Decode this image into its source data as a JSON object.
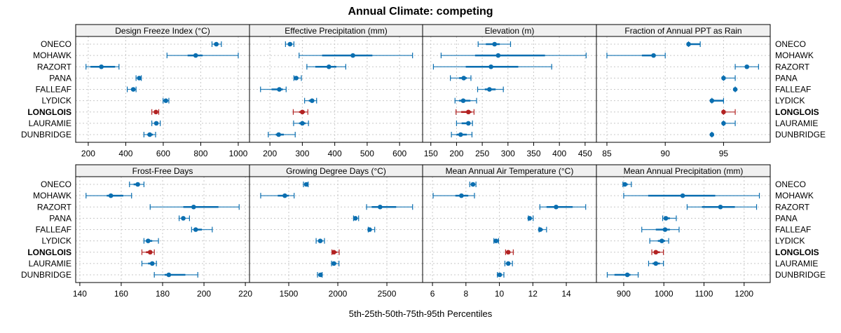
{
  "chart_data": {
    "type": "dotplot-intervals",
    "title": "Annual Climate: competing",
    "xlabel": "5th-25th-50th-75th-95th Percentiles",
    "sites": [
      "ONECO",
      "MOHAWK",
      "RAZORT",
      "PANA",
      "FALLEAF",
      "LYDICK",
      "LONGLOIS",
      "LAURAMIE",
      "DUNBRIDGE"
    ],
    "highlight_site": "LONGLOIS",
    "colors": {
      "default": "#0a6eb0",
      "highlight": "#b22222",
      "grid": "#c8c8c8",
      "strip": "#f0f0f0"
    },
    "grid": true,
    "percentiles": [
      "p5",
      "p25",
      "p50",
      "p75",
      "p95"
    ],
    "panels": [
      {
        "label": "Design Freeze Index (°C)",
        "xlim": [
          133,
          1060
        ],
        "ticks": [
          200,
          400,
          600,
          800,
          1000
        ],
        "values": [
          [
            860,
            870,
            883,
            895,
            910
          ],
          [
            620,
            730,
            773,
            810,
            1000
          ],
          [
            188,
            212,
            270,
            343,
            364
          ],
          [
            455,
            465,
            472,
            478,
            483
          ],
          [
            408,
            428,
            440,
            450,
            455
          ],
          [
            599,
            606,
            614,
            622,
            630
          ],
          [
            539,
            552,
            561,
            570,
            576
          ],
          [
            539,
            552,
            563,
            572,
            584
          ],
          [
            497,
            515,
            528,
            545,
            559
          ]
        ]
      },
      {
        "label": "Effective Precipitation (mm)",
        "xlim": [
          137,
          671
        ],
        "ticks": [
          200,
          300,
          400,
          500,
          600
        ],
        "values": [
          [
            248,
            255,
            262,
            268,
            274
          ],
          [
            290,
            361,
            456,
            516,
            640
          ],
          [
            314,
            340,
            382,
            405,
            434
          ],
          [
            274,
            277,
            281,
            288,
            297
          ],
          [
            171,
            205,
            229,
            240,
            250
          ],
          [
            307,
            320,
            330,
            337,
            344
          ],
          [
            272,
            290,
            300,
            308,
            317
          ],
          [
            273,
            290,
            300,
            310,
            319
          ],
          [
            195,
            218,
            227,
            243,
            278
          ]
        ]
      },
      {
        "label": "Elevation (m)",
        "xlim": [
          134,
          472
        ],
        "ticks": [
          150,
          200,
          250,
          300,
          350,
          400,
          450
        ],
        "values": [
          [
            242,
            257,
            274,
            284,
            305
          ],
          [
            170,
            236,
            281,
            372,
            452
          ],
          [
            155,
            218,
            267,
            320,
            385
          ],
          [
            188,
            205,
            214,
            220,
            228
          ],
          [
            241,
            255,
            264,
            276,
            291
          ],
          [
            197,
            205,
            213,
            227,
            239
          ],
          [
            199,
            209,
            223,
            229,
            234
          ],
          [
            200,
            210,
            223,
            227,
            231
          ],
          [
            190,
            200,
            208,
            220,
            230
          ]
        ]
      },
      {
        "label": "Fraction of Annual PPT as Rain",
        "xlim": [
          84.1,
          99
        ],
        "ticks": [
          85,
          90,
          95
        ],
        "values": [
          [
            92,
            92,
            92,
            93,
            93
          ],
          [
            85,
            88,
            89,
            89,
            90
          ],
          [
            96,
            97,
            97,
            97,
            98
          ],
          [
            95,
            95,
            95,
            95,
            96
          ],
          [
            96,
            96,
            96,
            96,
            96
          ],
          [
            94,
            94,
            94,
            95,
            95
          ],
          [
            95,
            95,
            95,
            95,
            96
          ],
          [
            95,
            95,
            95,
            95,
            96
          ],
          [
            94,
            94,
            94,
            94,
            94
          ]
        ]
      },
      {
        "label": "Frost-Free Days",
        "xlim": [
          138,
          222
        ],
        "ticks": [
          140,
          160,
          180,
          200,
          220
        ],
        "values": [
          [
            164,
            166,
            168,
            169,
            171
          ],
          [
            143,
            153,
            155,
            161,
            165
          ],
          [
            174,
            190,
            195,
            207,
            217
          ],
          [
            188,
            189,
            190,
            191,
            193
          ],
          [
            194,
            195,
            196,
            199,
            204
          ],
          [
            171,
            172,
            173,
            175,
            178
          ],
          [
            170,
            172,
            174,
            175,
            176
          ],
          [
            170,
            173,
            175,
            176,
            177
          ],
          [
            176,
            181,
            183,
            191,
            197
          ]
        ]
      },
      {
        "label": "Growing Degree Days (°C)",
        "xlim": [
          1100,
          2864
        ],
        "ticks": [
          1500,
          2000,
          2500
        ],
        "values": [
          [
            1650,
            1665,
            1679,
            1690,
            1698
          ],
          [
            1214,
            1388,
            1460,
            1500,
            1555
          ],
          [
            2293,
            2345,
            2431,
            2595,
            2762
          ],
          [
            2160,
            2170,
            2179,
            2195,
            2212
          ],
          [
            2310,
            2315,
            2324,
            2345,
            2376
          ],
          [
            1779,
            1800,
            1821,
            1845,
            1864
          ],
          [
            1940,
            1950,
            1960,
            1990,
            2014
          ],
          [
            1936,
            1948,
            1960,
            1985,
            2012
          ],
          [
            1793,
            1810,
            1824,
            1832,
            1840
          ]
        ]
      },
      {
        "label": "Mean Annual Air Temperature (°C)",
        "xlim": [
          5.41,
          15.8
        ],
        "ticks": [
          6,
          8,
          10,
          12,
          14
        ],
        "values": [
          [
            8.23,
            8.33,
            8.42,
            8.5,
            8.6
          ],
          [
            6.04,
            7.37,
            7.73,
            8.14,
            8.51
          ],
          [
            12.42,
            12.82,
            13.39,
            14.38,
            15.16
          ],
          [
            11.73,
            11.77,
            11.81,
            11.9,
            12.02
          ],
          [
            12.37,
            12.4,
            12.44,
            12.6,
            12.82
          ],
          [
            9.67,
            9.73,
            9.8,
            9.88,
            9.95
          ],
          [
            10.37,
            10.45,
            10.53,
            10.65,
            10.83
          ],
          [
            10.33,
            10.43,
            10.53,
            10.65,
            10.78
          ],
          [
            9.88,
            9.95,
            10.02,
            10.12,
            10.27
          ]
        ]
      },
      {
        "label": "Mean Annual Precipitation (mm)",
        "xlim": [
          832,
          1265
        ],
        "ticks": [
          900,
          1000,
          1100,
          1200
        ],
        "values": [
          [
            898,
            900,
            903,
            910,
            919
          ],
          [
            900,
            961,
            1047,
            1128,
            1238
          ],
          [
            1058,
            1095,
            1141,
            1177,
            1231
          ],
          [
            997,
            1000,
            1005,
            1015,
            1031
          ],
          [
            945,
            980,
            1003,
            1015,
            1038
          ],
          [
            965,
            985,
            995,
            1003,
            1012
          ],
          [
            970,
            975,
            980,
            990,
            999
          ],
          [
            962,
            972,
            980,
            990,
            999
          ],
          [
            859,
            877,
            909,
            917,
            936
          ]
        ]
      }
    ]
  }
}
